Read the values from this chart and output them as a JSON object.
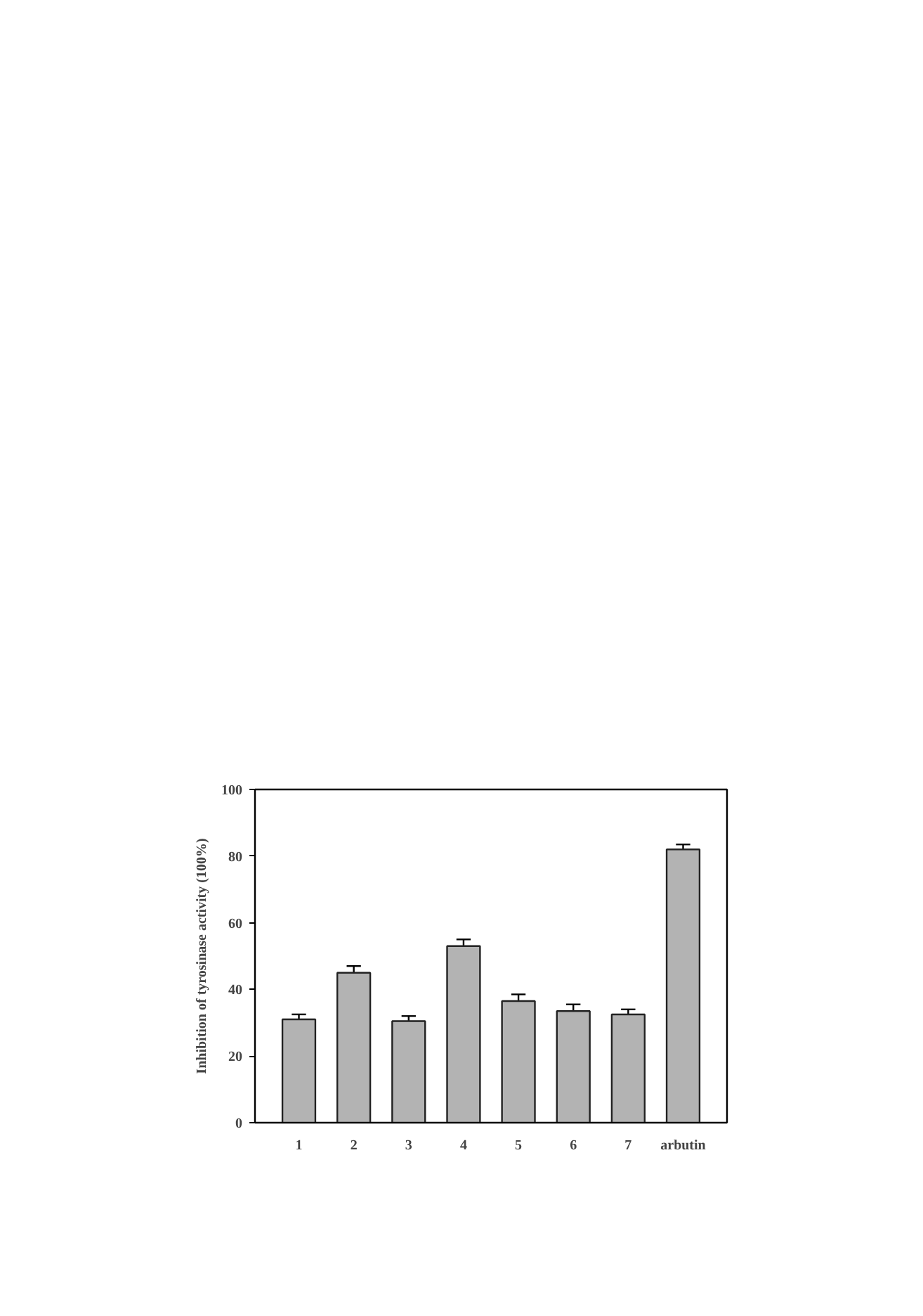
{
  "chart_data": {
    "type": "bar",
    "ylabel": "Inhibition of tyrosinase activity (100%)",
    "categories": [
      "1",
      "2",
      "3",
      "4",
      "5",
      "6",
      "7",
      "arbutin"
    ],
    "values": [
      31,
      45,
      30.5,
      53,
      36.5,
      33.5,
      32.5,
      82
    ],
    "errors": [
      1.5,
      2,
      1.5,
      2,
      2,
      2,
      1.5,
      1.5
    ],
    "color": "#b3b3b3",
    "ylim": [
      0,
      100
    ],
    "yticks": [
      0,
      20,
      40,
      60,
      80,
      100
    ],
    "grid": false
  }
}
